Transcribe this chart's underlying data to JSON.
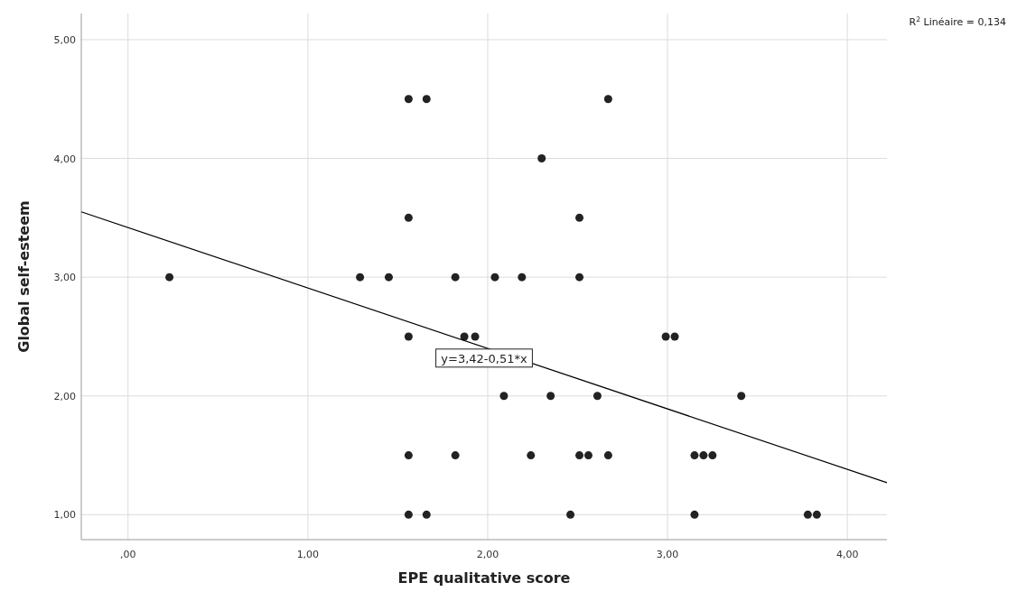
{
  "chart_data": {
    "type": "scatter",
    "xlabel": "EPE qualitative score",
    "ylabel": "Global self-esteem",
    "xlim": [
      -0.26,
      4.22
    ],
    "ylim": [
      0.79,
      5.22
    ],
    "xticks": [
      {
        "value": 0,
        "label": ",00"
      },
      {
        "value": 1,
        "label": "1,00"
      },
      {
        "value": 2,
        "label": "2,00"
      },
      {
        "value": 3,
        "label": "3,00"
      },
      {
        "value": 4,
        "label": "4,00"
      }
    ],
    "yticks": [
      {
        "value": 1,
        "label": "1,00"
      },
      {
        "value": 2,
        "label": "2,00"
      },
      {
        "value": 3,
        "label": "3,00"
      },
      {
        "value": 4,
        "label": "4,00"
      },
      {
        "value": 5,
        "label": "5,00"
      }
    ],
    "grid": true,
    "marker": "circle",
    "series": [
      {
        "color": "#222222",
        "x": [
          0.23,
          1.56,
          1.66,
          2.67,
          2.3,
          1.56,
          2.51,
          1.29,
          1.45,
          1.82,
          2.04,
          2.19,
          2.51,
          1.56,
          1.87,
          1.93,
          2.99,
          3.04,
          2.09,
          2.35,
          2.61,
          3.41,
          1.56,
          1.82,
          2.24,
          2.51,
          2.56,
          2.67,
          3.15,
          3.2,
          3.25,
          1.56,
          1.66,
          2.46,
          3.15,
          3.78,
          3.83
        ],
        "values": [
          3,
          4.5,
          4.5,
          4.5,
          4,
          3.5,
          3.5,
          3,
          3,
          3,
          3,
          3,
          3,
          2.5,
          2.5,
          2.5,
          2.5,
          2.5,
          2,
          2,
          2,
          2,
          1.5,
          1.5,
          1.5,
          1.5,
          1.5,
          1.5,
          1.5,
          1.5,
          1.5,
          1,
          1,
          1,
          1,
          1,
          1
        ]
      },
      {
        "type": "line",
        "color": "#000000",
        "x": [
          -0.26,
          4.22
        ],
        "values": [
          3.55,
          1.27
        ],
        "line_style": "solid",
        "marker": "none"
      }
    ],
    "annotations": [
      {
        "text": "y=3,42-0,51*x",
        "x": 1.98,
        "y": 2.41
      },
      "R$^{2}$ Linéaire = 0,134"
    ]
  }
}
